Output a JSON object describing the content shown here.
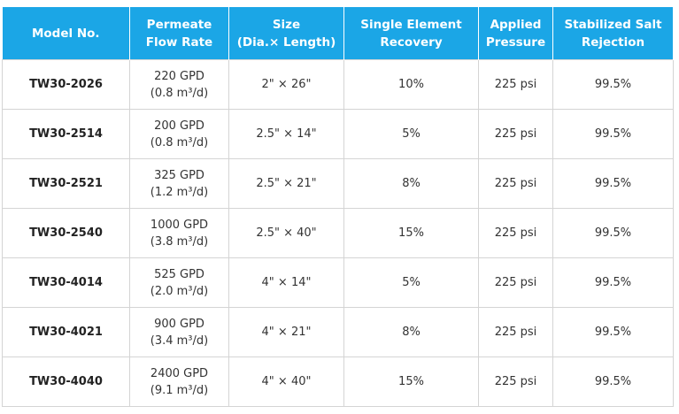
{
  "table": {
    "header": [
      [
        "Model No."
      ],
      [
        "Permeate",
        "Flow Rate"
      ],
      [
        "Size",
        "(Dia.× Length)"
      ],
      [
        "Single Element",
        "Recovery"
      ],
      [
        "Applied",
        "Pressure"
      ],
      [
        "Stabilized Salt",
        "Rejection"
      ]
    ],
    "rows": [
      [
        "TW30-2026",
        [
          "220 GPD",
          "(0.8 m³/d)"
        ],
        "2\" × 26\"",
        "10%",
        "225 psi",
        "99.5%"
      ],
      [
        "TW30-2514",
        [
          "200 GPD",
          "(0.8 m³/d)"
        ],
        "2.5\" × 14\"",
        "5%",
        "225 psi",
        "99.5%"
      ],
      [
        "TW30-2521",
        [
          "325 GPD",
          "(1.2 m³/d)"
        ],
        "2.5\" × 21\"",
        "8%",
        "225 psi",
        "99.5%"
      ],
      [
        "TW30-2540",
        [
          "1000 GPD",
          "(3.8 m³/d)"
        ],
        "2.5\" × 40\"",
        "15%",
        "225 psi",
        "99.5%"
      ],
      [
        "TW30-4014",
        [
          "525 GPD",
          "(2.0 m³/d)"
        ],
        "4\" × 14\"",
        "5%",
        "225 psi",
        "99.5%"
      ],
      [
        "TW30-4021",
        [
          "900 GPD",
          "(3.4 m³/d)"
        ],
        "4\" × 21\"",
        "8%",
        "225 psi",
        "99.5%"
      ],
      [
        "TW30-4040",
        [
          "2400 GPD",
          "(9.1 m³/d)"
        ],
        "4\" × 40\"",
        "15%",
        "225 psi",
        "99.5%"
      ]
    ]
  }
}
